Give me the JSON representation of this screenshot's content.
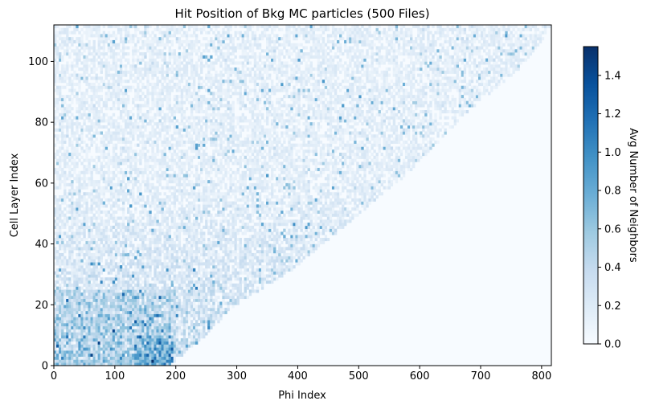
{
  "chart_data": {
    "type": "heatmap",
    "title": "Hit Position of Bkg MC particles (500 Files)",
    "xlabel": "Phi Index",
    "ylabel": "Cell Layer Index",
    "xlim": [
      0,
      816
    ],
    "ylim": [
      0,
      112
    ],
    "x_ticks": [
      "0",
      "100",
      "200",
      "300",
      "400",
      "500",
      "600",
      "700",
      "800"
    ],
    "y_ticks": [
      "0",
      "20",
      "40",
      "60",
      "80",
      "100"
    ],
    "colorbar": {
      "label": "Avg Number of Neighbors",
      "colormap": "Blues",
      "range": [
        0,
        1.55
      ],
      "ticks": [
        "0.0",
        "0.2",
        "0.4",
        "0.6",
        "0.8",
        "1.0",
        "1.2",
        "1.4"
      ]
    },
    "coverage_edge": {
      "layers": [
        0,
        8,
        18,
        24,
        30,
        38,
        46,
        54,
        62,
        72,
        82,
        90,
        98,
        106,
        112
      ],
      "max_phi": [
        192,
        240,
        288,
        336,
        384,
        432,
        480,
        528,
        576,
        624,
        672,
        720,
        768,
        800,
        816
      ]
    },
    "grid": false,
    "colors": {
      "low": "#f7fbff",
      "high": "#08306b"
    }
  }
}
